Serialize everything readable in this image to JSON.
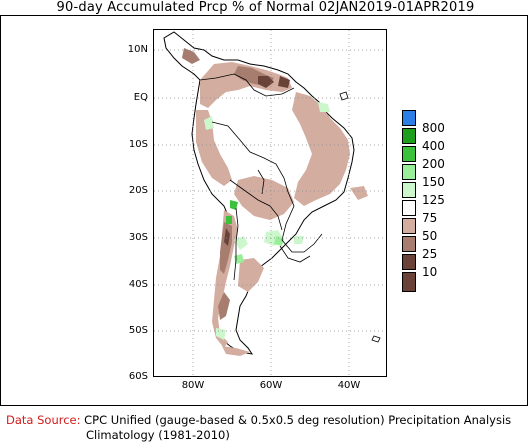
{
  "title": "90-day Accumulated Prcp % of Normal 02JAN2019-01APR2019",
  "map": {
    "y_axis_labels": [
      "10N",
      "EQ",
      "10S",
      "20S",
      "30S",
      "40S",
      "50S",
      "60S"
    ],
    "x_axis_labels": [
      "80W",
      "60W",
      "40W"
    ]
  },
  "legend": {
    "levels": [
      {
        "label": "800",
        "color": "#2b7fe6"
      },
      {
        "label": "400",
        "color": "#1d9e1d"
      },
      {
        "label": "200",
        "color": "#3cc13c"
      },
      {
        "label": "150",
        "color": "#99ee99"
      },
      {
        "label": "125",
        "color": "#ccf7cc"
      },
      {
        "label": "75",
        "color": "#ffffff"
      },
      {
        "label": "50",
        "color": "#d4ada1"
      },
      {
        "label": "25",
        "color": "#a77d70"
      },
      {
        "label": "10",
        "color": "#6b4238"
      }
    ]
  },
  "footer": {
    "source_label": "Data Source:",
    "source_text": "CPC Unified (gauge-based & 0.5x0.5 deg resolution) Precipitation Analysis",
    "climatology": "Climatology (1981-2010)"
  }
}
